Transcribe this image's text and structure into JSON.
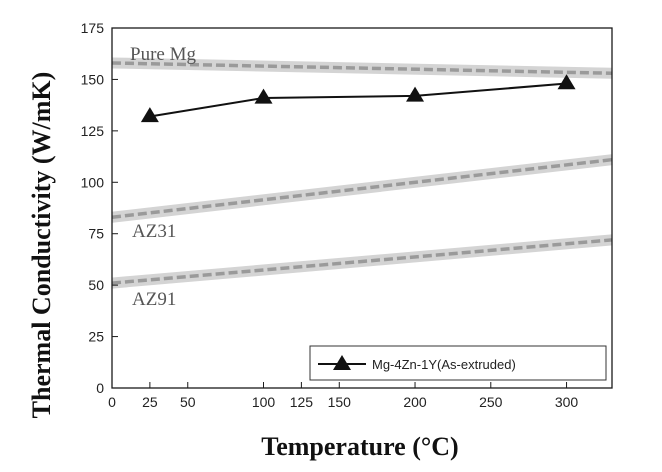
{
  "chart_data": {
    "type": "line",
    "xlabel_prefix": "Temperature (",
    "xlabel_unit": "°C",
    "xlabel_suffix": ")",
    "ylabel": "Thermal Conductivity (W/mK)",
    "xlim": [
      0,
      330
    ],
    "ylim": [
      0,
      175
    ],
    "x_ticks": [
      0,
      25,
      50,
      100,
      125,
      150,
      200,
      250,
      300
    ],
    "x_tick_labels": [
      "0",
      "25",
      "50",
      "100",
      "125",
      "150",
      "200",
      "250",
      "300"
    ],
    "y_ticks": [
      0,
      25,
      50,
      75,
      100,
      125,
      150,
      175
    ],
    "y_tick_labels": [
      "0",
      "25",
      "50",
      "75",
      "100",
      "125",
      "150",
      "175"
    ],
    "grid": false,
    "legend_position": "bottom-right",
    "series": [
      {
        "name": "Mg-4Zn-1Y(As-extruded)",
        "x": [
          25,
          100,
          200,
          300
        ],
        "y": [
          132,
          141,
          142,
          148
        ],
        "color": "#111111",
        "marker": "triangle"
      }
    ],
    "reference_lines": [
      {
        "label": "Pure Mg",
        "x": [
          0,
          330
        ],
        "y": [
          158,
          153
        ],
        "color": "#9a9a9a"
      },
      {
        "label": "AZ31",
        "x": [
          0,
          330
        ],
        "y": [
          83,
          111
        ],
        "color": "#9a9a9a"
      },
      {
        "label": "AZ91",
        "x": [
          0,
          330
        ],
        "y": [
          51,
          72
        ],
        "color": "#9a9a9a"
      }
    ]
  }
}
